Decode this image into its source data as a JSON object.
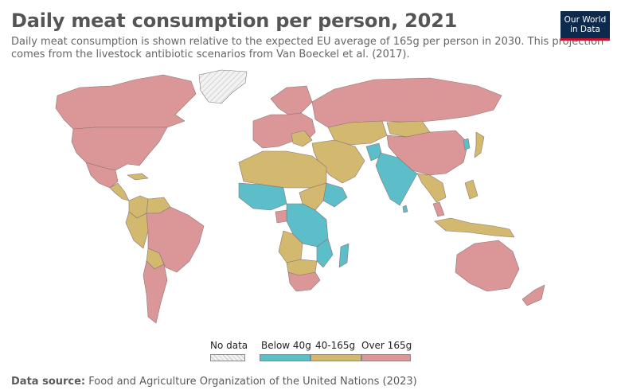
{
  "header": {
    "title": "Daily meat consumption per person, 2021",
    "subtitle_line1": "Daily meat consumption is shown relative to the expected EU average of 165g per person in 2030. This projection",
    "subtitle_line2": "comes from the livestock antibiotic scenarios from Van Boeckel et al. (2017)."
  },
  "logo": {
    "line1": "Our World",
    "line2": "in Data"
  },
  "legend": {
    "no_data": "No data",
    "bins": [
      {
        "label": "Below 40g",
        "color": "#5bbec8"
      },
      {
        "label": "40-165g",
        "color": "#d3b96f"
      },
      {
        "label": "Over 165g",
        "color": "#db9797"
      }
    ]
  },
  "source": {
    "label": "Data source:",
    "text": "Food and Agriculture Organization of the United Nations (2023)"
  },
  "colors": {
    "low": "#5bbec8",
    "mid": "#d3b96f",
    "high": "#db9797",
    "no_data": "#eeeeee",
    "border": "#7a6a6a"
  }
}
